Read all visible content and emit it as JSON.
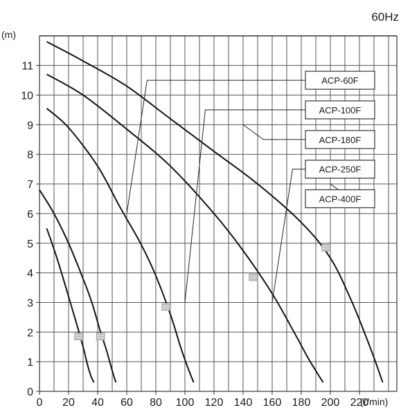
{
  "frequency_label": "60Hz",
  "chart_data": {
    "type": "line",
    "title": "",
    "xlabel": "(ℓ/min)",
    "ylabel": "(m)",
    "xlim": [
      0,
      240
    ],
    "ylim": [
      0,
      12
    ],
    "x_ticks": [
      0,
      20,
      40,
      60,
      80,
      100,
      120,
      140,
      160,
      180,
      200,
      220
    ],
    "y_ticks": [
      0,
      1,
      2,
      3,
      4,
      5,
      6,
      7,
      8,
      9,
      10,
      11
    ],
    "grid": true,
    "grid_step_x": 10,
    "grid_step_y": 1,
    "series": [
      {
        "name": "ACP-60F",
        "x": [
          5,
          12,
          20,
          26,
          30,
          33,
          35.5,
          37.5
        ],
        "y": [
          5.5,
          4.5,
          3.2,
          2.2,
          1.5,
          0.9,
          0.5,
          0.3
        ],
        "marker_x": 27,
        "marker_y": 1.85
      },
      {
        "name": "ACP-100F",
        "x": [
          0,
          10,
          20,
          30,
          36,
          42,
          46,
          50,
          52.5
        ],
        "y": [
          6.8,
          6.0,
          5.0,
          3.8,
          3.0,
          2.0,
          1.4,
          0.7,
          0.3
        ],
        "marker_x": 42,
        "marker_y": 1.85
      },
      {
        "name": "ACP-180F",
        "x": [
          5,
          20,
          40,
          55,
          70,
          80,
          90,
          97,
          102,
          106
        ],
        "y": [
          9.55,
          8.9,
          7.6,
          6.25,
          4.95,
          3.9,
          2.6,
          1.5,
          0.8,
          0.3
        ],
        "marker_x": 87,
        "marker_y": 2.85
      },
      {
        "name": "ACP-250F",
        "x": [
          5,
          30,
          60,
          90,
          120,
          140,
          160,
          175,
          185,
          195
        ],
        "y": [
          10.7,
          10.0,
          8.85,
          7.6,
          6.0,
          4.75,
          3.3,
          2.0,
          1.1,
          0.3
        ],
        "marker_x": 147,
        "marker_y": 3.85
      },
      {
        "name": "ACP-400F",
        "x": [
          5,
          30,
          60,
          90,
          120,
          150,
          180,
          200,
          215,
          228,
          236
        ],
        "y": [
          11.8,
          11.15,
          10.3,
          9.2,
          8.1,
          7.0,
          5.7,
          4.5,
          3.0,
          1.4,
          0.3
        ],
        "marker_x": 197,
        "marker_y": 4.85
      }
    ],
    "legend": [
      {
        "name": "ACP-60F",
        "anchor_x": 60,
        "anchor_y": 6.0
      },
      {
        "name": "ACP-100F",
        "anchor_x": 100,
        "anchor_y": 3.0
      },
      {
        "name": "ACP-180F",
        "anchor_x": 140,
        "anchor_y": 9.0
      },
      {
        "name": "ACP-250F",
        "anchor_x": 160,
        "anchor_y": 3.0
      },
      {
        "name": "ACP-400F",
        "anchor_x": 200,
        "anchor_y": 7.0
      }
    ]
  }
}
